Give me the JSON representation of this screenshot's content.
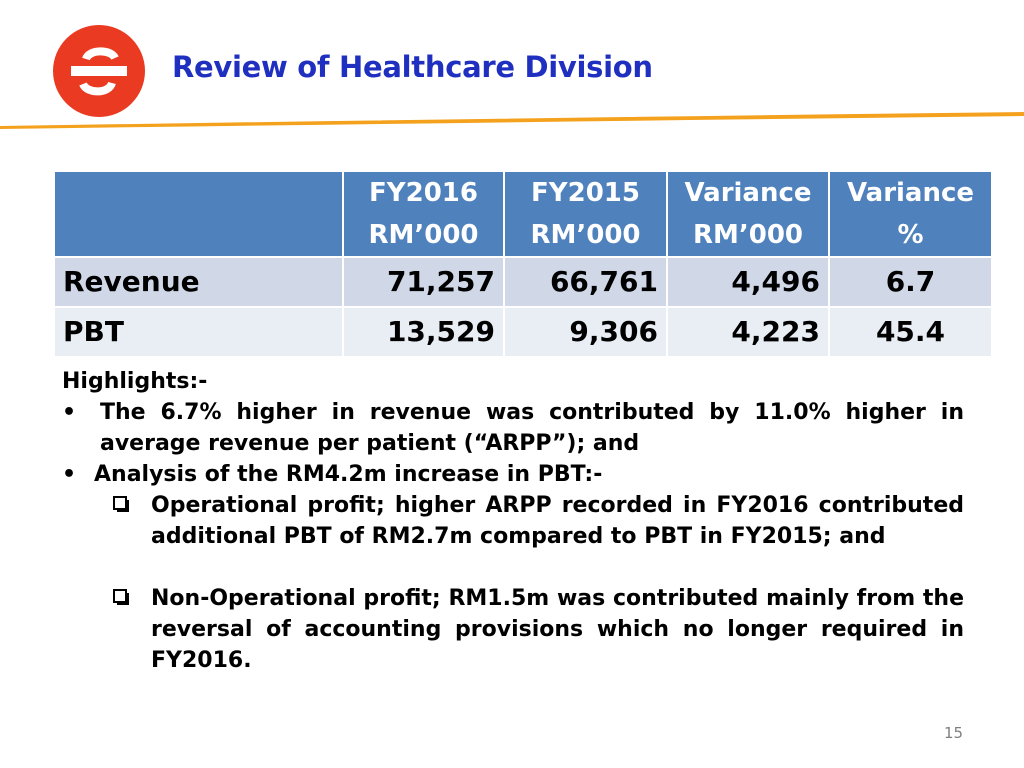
{
  "header": {
    "title": "Review of Healthcare Division",
    "logo_letter": "S",
    "colors": {
      "logo_red": "#ea3b22",
      "title_blue": "#1f2fbf",
      "accent_orange": "#f4a11e"
    }
  },
  "table": {
    "header_color": "#4f81bd",
    "columns": [
      "",
      "FY2016 RM’000",
      "FY2015 RM’000",
      "Variance RM’000",
      "Variance %"
    ],
    "rows": [
      [
        "Revenue",
        "71,257",
        "66,761",
        "4,496",
        "6.7"
      ],
      [
        "PBT",
        "13,529",
        "9,306",
        "4,223",
        "45.4"
      ]
    ]
  },
  "highlights": {
    "title": "Highlights:-",
    "bullet1": "The 6.7% higher in revenue was contributed by 11.0% higher in average revenue per patient (“ARPP”); and",
    "bullet2": "Analysis of the RM4.2m increase in PBT:-",
    "sub1": "Operational profit;   higher ARPP recorded in FY2016 contributed additional PBT of RM2.7m compared to PBT in FY2015;  and",
    "sub2": "Non-Operational profit; RM1.5m was contributed mainly from the reversal of accounting provisions which no longer required in FY2016."
  },
  "page_number": "15"
}
